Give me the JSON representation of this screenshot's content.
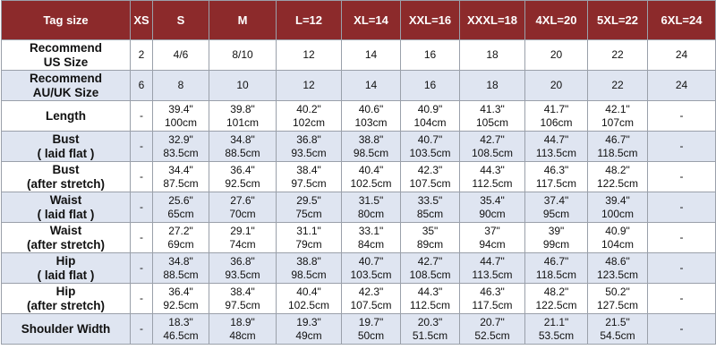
{
  "table": {
    "header": [
      "Tag size",
      "XS",
      "S",
      "M",
      "L=12",
      "XL=14",
      "XXL=16",
      "XXXL=18",
      "4XL=20",
      "5XL=22",
      "6XL=24"
    ],
    "rows": [
      {
        "label": [
          "Recommend",
          "US Size"
        ],
        "cells": [
          [
            "2"
          ],
          [
            "4/6"
          ],
          [
            "8/10"
          ],
          [
            "12"
          ],
          [
            "14"
          ],
          [
            "16"
          ],
          [
            "18"
          ],
          [
            "20"
          ],
          [
            "22"
          ],
          [
            "24"
          ]
        ]
      },
      {
        "label": [
          "Recommend",
          "AU/UK Size"
        ],
        "cells": [
          [
            "6"
          ],
          [
            "8"
          ],
          [
            "10"
          ],
          [
            "12"
          ],
          [
            "14"
          ],
          [
            "16"
          ],
          [
            "18"
          ],
          [
            "20"
          ],
          [
            "22"
          ],
          [
            "24"
          ]
        ]
      },
      {
        "label": [
          "Length"
        ],
        "cells": [
          [
            "-"
          ],
          [
            "39.4\"",
            "100cm"
          ],
          [
            "39.8\"",
            "101cm"
          ],
          [
            "40.2\"",
            "102cm"
          ],
          [
            "40.6\"",
            "103cm"
          ],
          [
            "40.9\"",
            "104cm"
          ],
          [
            "41.3\"",
            "105cm"
          ],
          [
            "41.7\"",
            "106cm"
          ],
          [
            "42.1\"",
            "107cm"
          ],
          [
            "-"
          ]
        ]
      },
      {
        "label": [
          "Bust",
          "( laid flat )"
        ],
        "cells": [
          [
            "-"
          ],
          [
            "32.9\"",
            "83.5cm"
          ],
          [
            "34.8\"",
            "88.5cm"
          ],
          [
            "36.8\"",
            "93.5cm"
          ],
          [
            "38.8\"",
            "98.5cm"
          ],
          [
            "40.7\"",
            "103.5cm"
          ],
          [
            "42.7\"",
            "108.5cm"
          ],
          [
            "44.7\"",
            "113.5cm"
          ],
          [
            "46.7\"",
            "118.5cm"
          ],
          [
            "-"
          ]
        ]
      },
      {
        "label": [
          "Bust",
          "(after stretch)"
        ],
        "cells": [
          [
            "-"
          ],
          [
            "34.4\"",
            "87.5cm"
          ],
          [
            "36.4\"",
            "92.5cm"
          ],
          [
            "38.4\"",
            "97.5cm"
          ],
          [
            "40.4\"",
            "102.5cm"
          ],
          [
            "42.3\"",
            "107.5cm"
          ],
          [
            "44.3\"",
            "112.5cm"
          ],
          [
            "46.3\"",
            "117.5cm"
          ],
          [
            "48.2\"",
            "122.5cm"
          ],
          [
            "-"
          ]
        ]
      },
      {
        "label": [
          "Waist",
          "( laid flat )"
        ],
        "cells": [
          [
            "-"
          ],
          [
            "25.6\"",
            "65cm"
          ],
          [
            "27.6\"",
            "70cm"
          ],
          [
            "29.5\"",
            "75cm"
          ],
          [
            "31.5\"",
            "80cm"
          ],
          [
            "33.5\"",
            "85cm"
          ],
          [
            "35.4\"",
            "90cm"
          ],
          [
            "37.4\"",
            "95cm"
          ],
          [
            "39.4\"",
            "100cm"
          ],
          [
            "-"
          ]
        ]
      },
      {
        "label": [
          "Waist",
          "(after stretch)"
        ],
        "cells": [
          [
            "-"
          ],
          [
            "27.2\"",
            "69cm"
          ],
          [
            "29.1\"",
            "74cm"
          ],
          [
            "31.1\"",
            "79cm"
          ],
          [
            "33.1\"",
            "84cm"
          ],
          [
            "35\"",
            "89cm"
          ],
          [
            "37\"",
            "94cm"
          ],
          [
            "39\"",
            "99cm"
          ],
          [
            "40.9\"",
            "104cm"
          ],
          [
            "-"
          ]
        ]
      },
      {
        "label": [
          "Hip",
          "( laid flat )"
        ],
        "cells": [
          [
            "-"
          ],
          [
            "34.8\"",
            "88.5cm"
          ],
          [
            "36.8\"",
            "93.5cm"
          ],
          [
            "38.8\"",
            "98.5cm"
          ],
          [
            "40.7\"",
            "103.5cm"
          ],
          [
            "42.7\"",
            "108.5cm"
          ],
          [
            "44.7\"",
            "113.5cm"
          ],
          [
            "46.7\"",
            "118.5cm"
          ],
          [
            "48.6\"",
            "123.5cm"
          ],
          [
            "-"
          ]
        ]
      },
      {
        "label": [
          "Hip",
          "(after stretch)"
        ],
        "cells": [
          [
            "-"
          ],
          [
            "36.4\"",
            "92.5cm"
          ],
          [
            "38.4\"",
            "97.5cm"
          ],
          [
            "40.4\"",
            "102.5cm"
          ],
          [
            "42.3\"",
            "107.5cm"
          ],
          [
            "44.3\"",
            "112.5cm"
          ],
          [
            "46.3\"",
            "117.5cm"
          ],
          [
            "48.2\"",
            "122.5cm"
          ],
          [
            "50.2\"",
            "127.5cm"
          ],
          [
            "-"
          ]
        ]
      },
      {
        "label": [
          "Shoulder Width"
        ],
        "cells": [
          [
            "-"
          ],
          [
            "18.3\"",
            "46.5cm"
          ],
          [
            "18.9\"",
            "48cm"
          ],
          [
            "19.3\"",
            "49cm"
          ],
          [
            "19.7\"",
            "50cm"
          ],
          [
            "20.3\"",
            "51.5cm"
          ],
          [
            "20.7\"",
            "52.5cm"
          ],
          [
            "21.1\"",
            "53.5cm"
          ],
          [
            "21.5\"",
            "54.5cm"
          ],
          [
            "-"
          ]
        ]
      }
    ]
  }
}
